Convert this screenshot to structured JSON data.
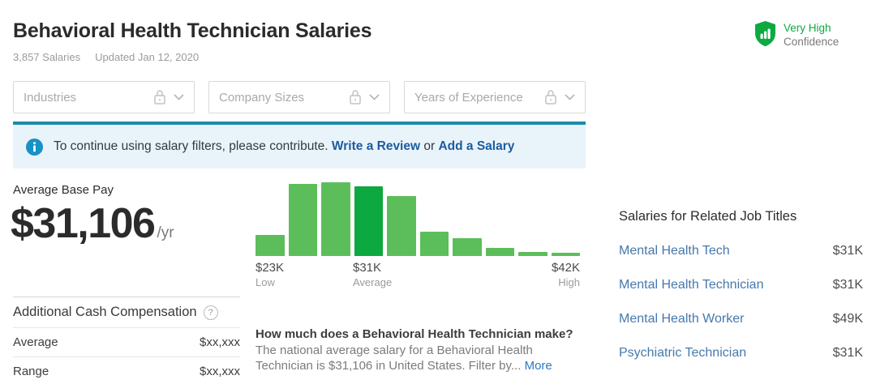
{
  "header": {
    "title": "Behavioral Health Technician Salaries",
    "salaries_count": "3,857 Salaries",
    "updated": "Updated Jan 12, 2020",
    "confidence_level": "Very High",
    "confidence_word": "Confidence"
  },
  "filters": {
    "items": [
      {
        "label": "Industries"
      },
      {
        "label": "Company Sizes"
      },
      {
        "label": "Years of Experience"
      }
    ]
  },
  "banner": {
    "message": "To continue using salary filters, please contribute.",
    "link_review": "Write a Review",
    "conjunction": "or",
    "link_salary": "Add a Salary"
  },
  "base_pay": {
    "label": "Average Base Pay",
    "amount": "$31,106",
    "period": "/yr"
  },
  "chart_data": {
    "type": "bar",
    "title": "Salary distribution histogram",
    "values": [
      29,
      98,
      100,
      94,
      81,
      33,
      24,
      11,
      6,
      4
    ],
    "highlight_index": 3,
    "bar_color": "#5cbe5a",
    "highlight_color": "#0da83f",
    "xlabel": "",
    "ylabel": "",
    "ylim": [
      0,
      100
    ],
    "annotations": {
      "low": {
        "value": "$23K",
        "label": "Low"
      },
      "average": {
        "value": "$31K",
        "label": "Average"
      },
      "high": {
        "value": "$42K",
        "label": "High"
      }
    }
  },
  "additional_comp": {
    "title": "Additional Cash Compensation",
    "help_glyph": "?",
    "rows": [
      {
        "label": "Average",
        "value": "$xx,xxx"
      },
      {
        "label": "Range",
        "value": "$xx,xxx"
      }
    ]
  },
  "about": {
    "question": "How much does a Behavioral Health Technician make?",
    "body": "The national average salary for a Behavioral Health Technician is $31,106 in United States. Filter by...",
    "more_label": "More"
  },
  "related": {
    "title": "Salaries for Related Job Titles",
    "rows": [
      {
        "title": "Mental Health Tech",
        "value": "$31K"
      },
      {
        "title": "Mental Health Technician",
        "value": "$31K"
      },
      {
        "title": "Mental Health Worker",
        "value": "$49K"
      },
      {
        "title": "Psychiatric Technician",
        "value": "$31K"
      }
    ]
  },
  "colors": {
    "brand_green": "#0caa41",
    "light_green": "#5cbe5a",
    "banner_border_teal": "#1c8caa",
    "info_blue": "#1791c8",
    "link_blue": "#1b5c9e",
    "related_link_blue": "#4579ab"
  }
}
